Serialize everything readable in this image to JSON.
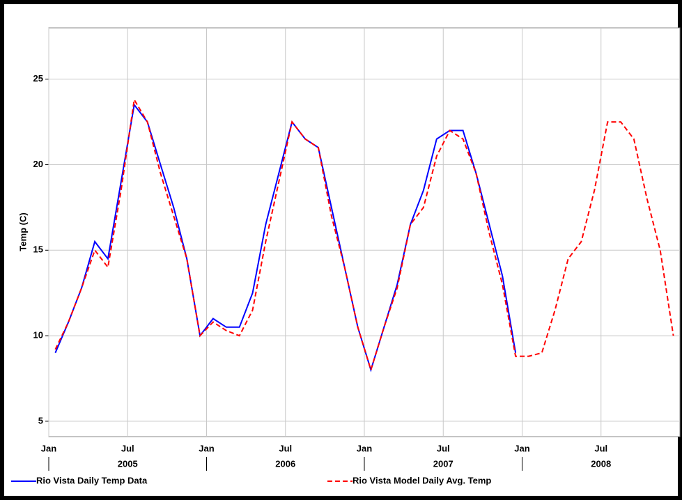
{
  "chart_data": {
    "type": "line",
    "y_label": "Temp (C)",
    "x": [
      "2005-01",
      "2005-02",
      "2005-03",
      "2005-04",
      "2005-05",
      "2005-06",
      "2005-07",
      "2005-08",
      "2005-09",
      "2005-10",
      "2005-11",
      "2005-12",
      "2006-01",
      "2006-02",
      "2006-03",
      "2006-04",
      "2006-05",
      "2006-06",
      "2006-07",
      "2006-08",
      "2006-09",
      "2006-10",
      "2006-11",
      "2006-12",
      "2007-01",
      "2007-02",
      "2007-03",
      "2007-04",
      "2007-05",
      "2007-06",
      "2007-07",
      "2007-08",
      "2007-09",
      "2007-10",
      "2007-11",
      "2007-12",
      "2008-01",
      "2008-02",
      "2008-03",
      "2008-04",
      "2008-05",
      "2008-06",
      "2008-07",
      "2008-08",
      "2008-09",
      "2008-10",
      "2008-11",
      "2008-12"
    ],
    "series": [
      {
        "name": "Rio Vista Daily Temp Data",
        "color": "#0000ff",
        "dash": false,
        "values": [
          9.0,
          10.8,
          12.8,
          15.5,
          14.5,
          19.0,
          23.5,
          22.5,
          20.0,
          17.5,
          14.5,
          10.0,
          11.0,
          10.5,
          10.5,
          12.5,
          16.5,
          19.5,
          22.5,
          21.5,
          21.0,
          17.5,
          14.0,
          10.5,
          8.0,
          10.5,
          13.0,
          16.5,
          18.5,
          21.5,
          22.0,
          22.0,
          19.5,
          16.5,
          13.5,
          9.0,
          null,
          null,
          null,
          null,
          null,
          null,
          null,
          null,
          null,
          null,
          null,
          null
        ]
      },
      {
        "name": "Rio Vista Model Daily Avg. Temp",
        "color": "#ff0000",
        "dash": true,
        "values": [
          9.2,
          10.8,
          12.8,
          15.0,
          14.0,
          18.5,
          23.8,
          22.5,
          19.5,
          17.0,
          14.5,
          10.0,
          10.8,
          10.3,
          10.0,
          11.5,
          15.5,
          19.0,
          22.5,
          21.5,
          21.0,
          17.0,
          14.0,
          10.5,
          8.0,
          10.5,
          12.8,
          16.5,
          17.5,
          20.5,
          22.0,
          21.5,
          19.5,
          16.0,
          13.0,
          8.8,
          8.8,
          9.0,
          11.5,
          14.5,
          15.5,
          18.5,
          22.5,
          22.5,
          21.5,
          18.0,
          15.0,
          10.0
        ]
      }
    ],
    "ylim": [
      4.1,
      28
    ],
    "yticks": [
      5,
      10,
      15,
      20,
      25
    ],
    "xticks": [
      {
        "value": "2005-01",
        "label": "Jan"
      },
      {
        "value": "2005-07",
        "label": "Jul"
      },
      {
        "value": "2006-01",
        "label": "Jan"
      },
      {
        "value": "2006-07",
        "label": "Jul"
      },
      {
        "value": "2007-01",
        "label": "Jan"
      },
      {
        "value": "2007-07",
        "label": "Jul"
      },
      {
        "value": "2008-01",
        "label": "Jan"
      },
      {
        "value": "2008-07",
        "label": "Jul"
      }
    ],
    "year_labels": [
      {
        "value": "2005-07",
        "label": "2005"
      },
      {
        "value": "2006-07",
        "label": "2006"
      },
      {
        "value": "2007-07",
        "label": "2007"
      },
      {
        "value": "2008-07",
        "label": "2008"
      }
    ],
    "grid": true
  }
}
